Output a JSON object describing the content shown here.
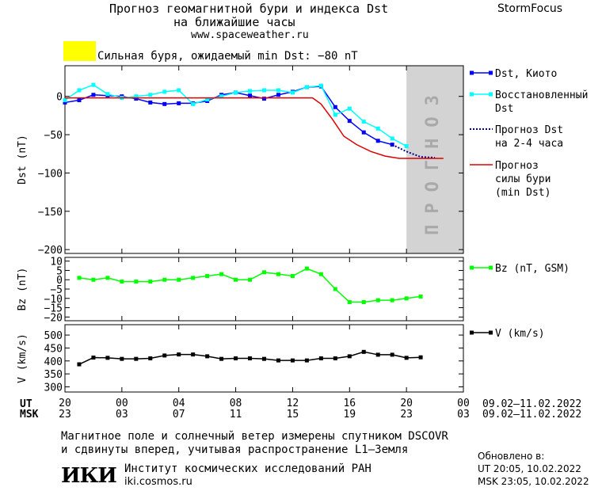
{
  "header": {
    "title_line1": "Прогноз геомагнитной бури и индекса Dst",
    "title_line2": "на ближайшие часы",
    "site": "www.spaceweather.ru",
    "brand": "StormFocus"
  },
  "storm_banner": {
    "text": "Сильная буря, ожидаемый min Dst: −80 nT",
    "color": "#ffff00"
  },
  "chart_data": [
    {
      "type": "line",
      "ylabel": "Dst (nT)",
      "ylim": [
        -205,
        40
      ],
      "yticks": [
        0,
        -50,
        -100,
        -150,
        -200
      ],
      "ytick_labels": [
        "0",
        "−50",
        "−100",
        "−150",
        "−200"
      ],
      "x_range": [
        0,
        28
      ],
      "forecast_zone": {
        "label": "ПРОГНОЗ",
        "from": 24,
        "to": 28,
        "color": "#d3d3d3"
      },
      "series": [
        {
          "name": "Dst, Киото",
          "color": "#0000ff",
          "marker": "square",
          "x": [
            0,
            1,
            2,
            3,
            4,
            5,
            6,
            7,
            8,
            9,
            10,
            11,
            12,
            13,
            14,
            15,
            16,
            17,
            18,
            19,
            20,
            21,
            22,
            23
          ],
          "y": [
            -8,
            -5,
            2,
            1,
            0,
            -3,
            -8,
            -10,
            -9,
            -9,
            -6,
            2,
            5,
            1,
            -3,
            2,
            6,
            12,
            13,
            -14,
            -32,
            -47,
            -58,
            -63
          ]
        },
        {
          "name": "Восстановленный Dst",
          "color": "#00ffff",
          "marker": "square",
          "x": [
            0,
            1,
            2,
            3,
            4,
            5,
            6,
            7,
            8,
            9,
            10,
            11,
            12,
            13,
            14,
            15,
            16,
            17,
            18,
            19,
            20,
            21,
            22,
            23,
            24
          ],
          "y": [
            -5,
            8,
            15,
            3,
            -2,
            0,
            2,
            6,
            8,
            -10,
            -4,
            0,
            5,
            7,
            8,
            8,
            5,
            12,
            14,
            -24,
            -16,
            -33,
            -42,
            -55,
            -65
          ]
        },
        {
          "name": "Прогноз Dst на 2-4 часа",
          "color": "#00008b",
          "style": "dotted",
          "x": [
            23,
            24,
            25,
            26
          ],
          "y": [
            -63,
            -72,
            -79,
            -80
          ]
        },
        {
          "name": "Прогноз силы бури (min Dst)",
          "color": "#dd0000",
          "x": [
            0,
            2,
            4,
            6,
            8,
            10,
            12,
            14,
            16,
            17.4,
            18,
            18.8,
            19.6,
            20.5,
            21.5,
            22.5,
            23.5,
            25,
            26.6
          ],
          "y": [
            -2,
            -2,
            -2,
            -2,
            -2,
            -2,
            -2,
            -2,
            -2,
            -2,
            -10,
            -30,
            -52,
            -63,
            -72,
            -78,
            -81,
            -81,
            -81
          ]
        }
      ],
      "legend": [
        {
          "text": "Dst, Киото",
          "color": "#0000ff"
        },
        {
          "text": "Восстановленный Dst",
          "color": "#00ffff"
        },
        {
          "text": "Прогноз Dst на 2-4 часа",
          "color": "#00008b"
        },
        {
          "text": "Прогноз силы бури (min Dst)",
          "color": "#dd0000"
        }
      ]
    },
    {
      "type": "line",
      "ylabel": "Bz (nT)",
      "ylim": [
        -22,
        12
      ],
      "yticks": [
        10,
        5,
        0,
        -5,
        -10,
        -15,
        -20
      ],
      "ytick_labels": [
        "10",
        "5",
        "0",
        "−5",
        "−10",
        "−15",
        "−20"
      ],
      "series": [
        {
          "name": "Bz (nT, GSM)",
          "color": "#00ff00",
          "marker": "square",
          "x": [
            1,
            2,
            3,
            4,
            5,
            6,
            7,
            8,
            9,
            10,
            11,
            12,
            13,
            14,
            15,
            16,
            17,
            18,
            19,
            20,
            21,
            22,
            23,
            24,
            25
          ],
          "y": [
            1,
            0,
            1,
            -1,
            -1,
            -1,
            0,
            0,
            1,
            2,
            3,
            0,
            0,
            4,
            3,
            2,
            6,
            3,
            -5,
            -12,
            -12,
            -11,
            -11,
            -10,
            -9
          ]
        }
      ]
    },
    {
      "type": "line",
      "ylabel": "V (km/s)",
      "ylim": [
        280,
        540
      ],
      "yticks": [
        500,
        450,
        400,
        350,
        300
      ],
      "ytick_labels": [
        "500",
        "450",
        "400",
        "350",
        "300"
      ],
      "series": [
        {
          "name": "V (km/s)",
          "color": "#000000",
          "marker": "square",
          "x": [
            1,
            2,
            3,
            4,
            5,
            6,
            7,
            8,
            9,
            10,
            11,
            12,
            13,
            14,
            15,
            16,
            17,
            18,
            19,
            20,
            21,
            22,
            23,
            24,
            25
          ],
          "y": [
            387,
            413,
            412,
            408,
            408,
            410,
            421,
            425,
            425,
            418,
            408,
            410,
            410,
            408,
            402,
            402,
            402,
            410,
            410,
            418,
            435,
            424,
            424,
            412,
            414
          ]
        }
      ]
    }
  ],
  "time_axis": {
    "ut_label": "UT",
    "msk_label": "MSK",
    "ut_ticks": [
      "20",
      "00",
      "04",
      "08",
      "12",
      "16",
      "20",
      "00"
    ],
    "msk_ticks": [
      "23",
      "03",
      "07",
      "11",
      "15",
      "19",
      "23",
      "03"
    ],
    "ut_range": "09.02–11.02.2022",
    "msk_range": "09.02–11.02.2022"
  },
  "footer": {
    "note_line1": "Магнитное поле и солнечный ветер измерены спутником DSCOVR",
    "note_line2": "и сдвинуты вперед, учитывая распространение L1–Земля",
    "logo": "ИКИ",
    "institute": "Институт космических исследований РАН",
    "institute_site": "iki.cosmos.ru",
    "updated_label": "Обновлено в:",
    "updated_ut": "UT  20:05, 10.02.2022",
    "updated_msk": "MSK 23:05, 10.02.2022"
  }
}
